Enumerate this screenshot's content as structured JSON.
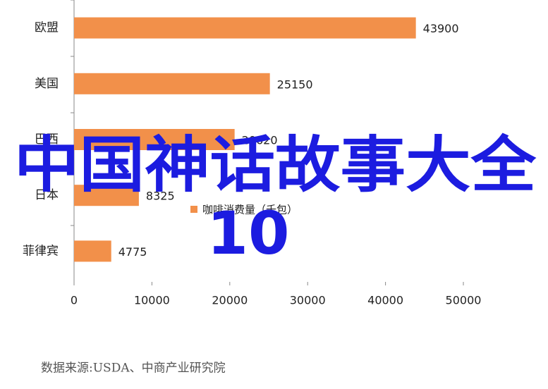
{
  "chart_data": {
    "type": "barh",
    "categories": [
      "欧盟",
      "美国",
      "巴西",
      "日本",
      "菲律宾"
    ],
    "series": [
      {
        "name": "咖啡消费量（千包）",
        "color": "#f2904a",
        "values": [
          43900,
          25150,
          20620,
          8325,
          4775
        ]
      }
    ],
    "xlim": [
      0,
      50000
    ],
    "xticks": [
      0,
      10000,
      20000,
      30000,
      40000,
      50000
    ],
    "source": "数据来源:USDA、中商产业研究院",
    "overlay_title": "中国神话故事大全",
    "overlay_number": "10"
  }
}
